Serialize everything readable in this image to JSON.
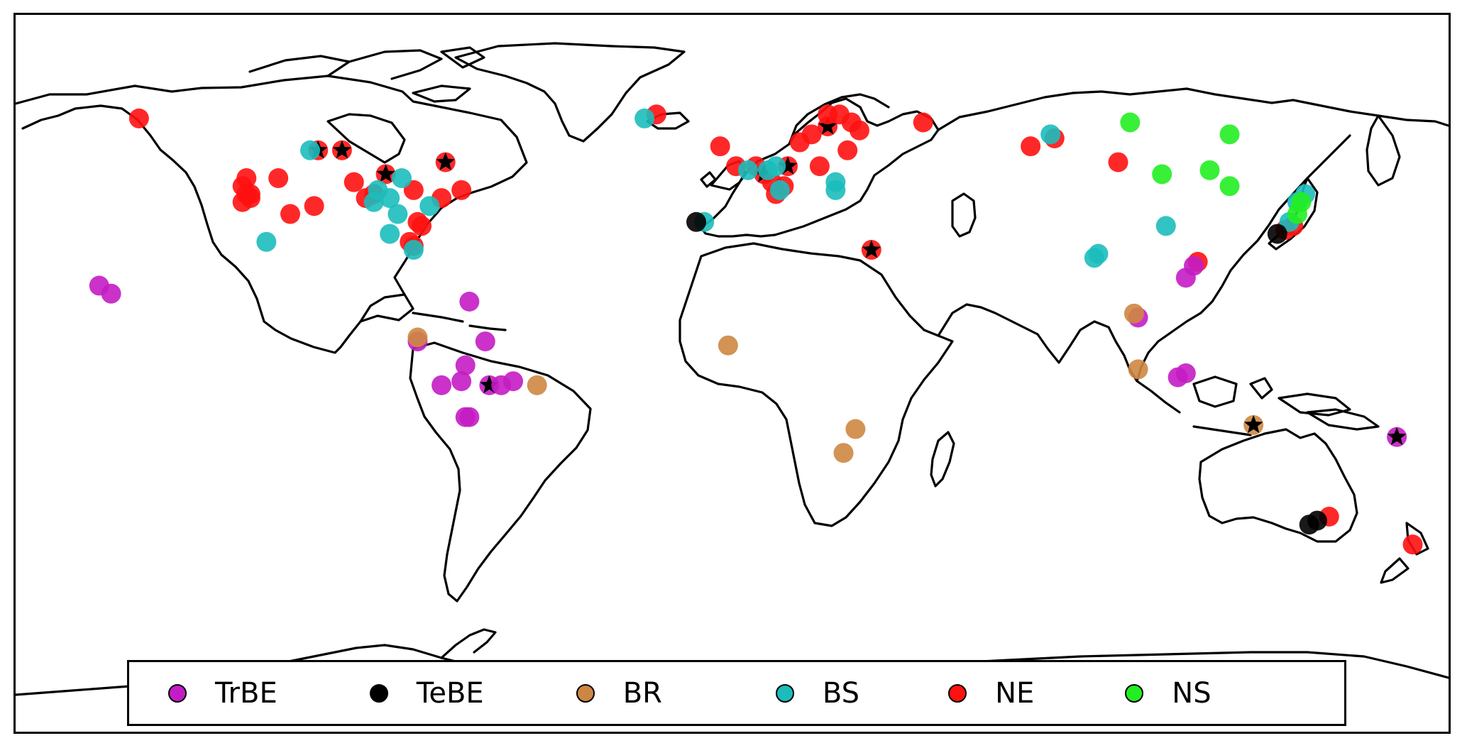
{
  "legend": {
    "items": [
      {
        "key": "TrBE",
        "label": "TrBE",
        "color": "#c41cc4"
      },
      {
        "key": "TeBE",
        "label": "TeBE",
        "color": "#000000"
      },
      {
        "key": "BR",
        "label": "BR",
        "color": "#cd8743"
      },
      {
        "key": "BS",
        "label": "BS",
        "color": "#1cbcbc"
      },
      {
        "key": "NE",
        "label": "NE",
        "color": "#ff1111"
      },
      {
        "key": "NS",
        "label": "NS",
        "color": "#22ee22"
      }
    ]
  },
  "map": {
    "projection": "plate-carree",
    "lon_range": [
      -180,
      180
    ],
    "lat_range": [
      -90,
      90
    ],
    "point_opacity": 0.9,
    "markers": {
      "site": "circle",
      "highlighted_site": "star"
    },
    "sites": [
      {
        "type": "NE",
        "lon": -149,
        "lat": 64,
        "star": false
      },
      {
        "type": "NE",
        "lon": -122,
        "lat": 49,
        "star": false
      },
      {
        "type": "NE",
        "lon": -123,
        "lat": 47,
        "star": false
      },
      {
        "type": "NE",
        "lon": -122,
        "lat": 45,
        "star": false
      },
      {
        "type": "NE",
        "lon": -121,
        "lat": 44,
        "star": false
      },
      {
        "type": "NE",
        "lon": -123,
        "lat": 43,
        "star": false
      },
      {
        "type": "NE",
        "lon": -121,
        "lat": 45,
        "star": false
      },
      {
        "type": "NE",
        "lon": -114,
        "lat": 49,
        "star": false
      },
      {
        "type": "NE",
        "lon": -111,
        "lat": 40,
        "star": false
      },
      {
        "type": "NE",
        "lon": -105,
        "lat": 42,
        "star": false
      },
      {
        "type": "NE",
        "lon": -95,
        "lat": 48,
        "star": false
      },
      {
        "type": "NE",
        "lon": -104,
        "lat": 56,
        "star": true
      },
      {
        "type": "NE",
        "lon": -98,
        "lat": 56,
        "star": true
      },
      {
        "type": "NE",
        "lon": -92,
        "lat": 44,
        "star": false
      },
      {
        "type": "NE",
        "lon": -87,
        "lat": 50,
        "star": true
      },
      {
        "type": "NE",
        "lon": -90,
        "lat": 45,
        "star": false
      },
      {
        "type": "NE",
        "lon": -80,
        "lat": 46,
        "star": false
      },
      {
        "type": "NE",
        "lon": -72,
        "lat": 53,
        "star": true
      },
      {
        "type": "NE",
        "lon": -68,
        "lat": 46,
        "star": false
      },
      {
        "type": "NE",
        "lon": -78,
        "lat": 37,
        "star": false
      },
      {
        "type": "NE",
        "lon": -79,
        "lat": 38,
        "star": false
      },
      {
        "type": "NE",
        "lon": -81,
        "lat": 33,
        "star": false
      },
      {
        "type": "NE",
        "lon": -80,
        "lat": 32,
        "star": false
      },
      {
        "type": "NE",
        "lon": -73,
        "lat": 44,
        "star": false
      },
      {
        "type": "NE",
        "lon": -19,
        "lat": 65,
        "star": false
      },
      {
        "type": "NE",
        "lon": -3,
        "lat": 57,
        "star": false
      },
      {
        "type": "NE",
        "lon": 1,
        "lat": 52,
        "star": false
      },
      {
        "type": "NE",
        "lon": 6,
        "lat": 52,
        "star": false
      },
      {
        "type": "NE",
        "lon": 8,
        "lat": 50,
        "star": true
      },
      {
        "type": "NE",
        "lon": 10,
        "lat": 48,
        "star": false
      },
      {
        "type": "NE",
        "lon": 13,
        "lat": 47,
        "star": false
      },
      {
        "type": "NE",
        "lon": 11,
        "lat": 45,
        "star": false
      },
      {
        "type": "NE",
        "lon": 14,
        "lat": 52,
        "star": true
      },
      {
        "type": "NE",
        "lon": 17,
        "lat": 58,
        "star": false
      },
      {
        "type": "NE",
        "lon": 20,
        "lat": 60,
        "star": false
      },
      {
        "type": "NE",
        "lon": 24,
        "lat": 62,
        "star": true
      },
      {
        "type": "NE",
        "lon": 24,
        "lat": 65,
        "star": false
      },
      {
        "type": "NE",
        "lon": 27,
        "lat": 65,
        "star": false
      },
      {
        "type": "NE",
        "lon": 30,
        "lat": 63,
        "star": false
      },
      {
        "type": "NE",
        "lon": 29,
        "lat": 56,
        "star": false
      },
      {
        "type": "NE",
        "lon": 22,
        "lat": 52,
        "star": false
      },
      {
        "type": "NE",
        "lon": 32,
        "lat": 61,
        "star": false
      },
      {
        "type": "NE",
        "lon": 48,
        "lat": 63,
        "star": false
      },
      {
        "type": "NE",
        "lon": 35,
        "lat": 31,
        "star": true
      },
      {
        "type": "NE",
        "lon": 75,
        "lat": 57,
        "star": false
      },
      {
        "type": "NE",
        "lon": 81,
        "lat": 59,
        "star": false
      },
      {
        "type": "NE",
        "lon": 97,
        "lat": 53,
        "star": false
      },
      {
        "type": "NE",
        "lon": 117,
        "lat": 28,
        "star": false
      },
      {
        "type": "NE",
        "lon": 139,
        "lat": 36,
        "star": false
      },
      {
        "type": "NE",
        "lon": 141,
        "lat": 37,
        "star": false
      },
      {
        "type": "NE",
        "lon": 150,
        "lat": -36,
        "star": false
      },
      {
        "type": "NE",
        "lon": 171,
        "lat": -43,
        "star": false
      },
      {
        "type": "BS",
        "lon": -86,
        "lat": 44,
        "star": false
      },
      {
        "type": "BS",
        "lon": -89,
        "lat": 46,
        "star": false
      },
      {
        "type": "BS",
        "lon": -90,
        "lat": 43,
        "star": false
      },
      {
        "type": "BS",
        "lon": -84,
        "lat": 40,
        "star": false
      },
      {
        "type": "BS",
        "lon": -86,
        "lat": 35,
        "star": false
      },
      {
        "type": "BS",
        "lon": -83,
        "lat": 49,
        "star": false
      },
      {
        "type": "BS",
        "lon": -76,
        "lat": 42,
        "star": false
      },
      {
        "type": "BS",
        "lon": -80,
        "lat": 31,
        "star": false
      },
      {
        "type": "BS",
        "lon": -117,
        "lat": 33,
        "star": false
      },
      {
        "type": "BS",
        "lon": -106,
        "lat": 56,
        "star": false
      },
      {
        "type": "BS",
        "lon": -22,
        "lat": 64,
        "star": false
      },
      {
        "type": "BS",
        "lon": 4,
        "lat": 51,
        "star": false
      },
      {
        "type": "BS",
        "lon": 9,
        "lat": 51,
        "star": false
      },
      {
        "type": "BS",
        "lon": 11,
        "lat": 52,
        "star": false
      },
      {
        "type": "BS",
        "lon": 12,
        "lat": 46,
        "star": false
      },
      {
        "type": "BS",
        "lon": 26,
        "lat": 48,
        "star": false
      },
      {
        "type": "BS",
        "lon": 26,
        "lat": 46,
        "star": false
      },
      {
        "type": "BS",
        "lon": -7,
        "lat": 38,
        "star": false
      },
      {
        "type": "BS",
        "lon": 80,
        "lat": 60,
        "star": false
      },
      {
        "type": "BS",
        "lon": 109,
        "lat": 37,
        "star": false
      },
      {
        "type": "BS",
        "lon": 91,
        "lat": 29,
        "star": false
      },
      {
        "type": "BS",
        "lon": 92,
        "lat": 30,
        "star": false
      },
      {
        "type": "BS",
        "lon": 142,
        "lat": 43,
        "star": false
      },
      {
        "type": "BS",
        "lon": 144,
        "lat": 45,
        "star": false
      },
      {
        "type": "BS",
        "lon": 140,
        "lat": 38,
        "star": false
      },
      {
        "type": "NS",
        "lon": 100,
        "lat": 63,
        "star": false
      },
      {
        "type": "NS",
        "lon": 108,
        "lat": 50,
        "star": false
      },
      {
        "type": "NS",
        "lon": 120,
        "lat": 51,
        "star": false
      },
      {
        "type": "NS",
        "lon": 125,
        "lat": 60,
        "star": false
      },
      {
        "type": "NS",
        "lon": 125,
        "lat": 47,
        "star": false
      },
      {
        "type": "NS",
        "lon": 142,
        "lat": 40,
        "star": false
      },
      {
        "type": "NS",
        "lon": 143,
        "lat": 43,
        "star": false
      },
      {
        "type": "TrBE",
        "lon": -159,
        "lat": 22,
        "star": false
      },
      {
        "type": "TrBE",
        "lon": -156,
        "lat": 20,
        "star": false
      },
      {
        "type": "TrBE",
        "lon": -66,
        "lat": 18,
        "star": false
      },
      {
        "type": "TrBE",
        "lon": -79,
        "lat": 8,
        "star": false
      },
      {
        "type": "TrBE",
        "lon": -62,
        "lat": 8,
        "star": false
      },
      {
        "type": "TrBE",
        "lon": -67,
        "lat": 2,
        "star": false
      },
      {
        "type": "TrBE",
        "lon": -73,
        "lat": -3,
        "star": false
      },
      {
        "type": "TrBE",
        "lon": -68,
        "lat": -2,
        "star": false
      },
      {
        "type": "TrBE",
        "lon": -61,
        "lat": -3,
        "star": true
      },
      {
        "type": "TrBE",
        "lon": -58,
        "lat": -3,
        "star": false
      },
      {
        "type": "TrBE",
        "lon": -55,
        "lat": -2,
        "star": false
      },
      {
        "type": "TrBE",
        "lon": -67,
        "lat": -11,
        "star": false
      },
      {
        "type": "TrBE",
        "lon": -66,
        "lat": -11,
        "star": false
      },
      {
        "type": "TrBE",
        "lon": 102,
        "lat": 14,
        "star": false
      },
      {
        "type": "TrBE",
        "lon": 114,
        "lat": 24,
        "star": false
      },
      {
        "type": "TrBE",
        "lon": 116,
        "lat": 27,
        "star": false
      },
      {
        "type": "TrBE",
        "lon": 112,
        "lat": -1,
        "star": false
      },
      {
        "type": "TrBE",
        "lon": 114,
        "lat": 0,
        "star": false
      },
      {
        "type": "TrBE",
        "lon": 167,
        "lat": -16,
        "star": true
      },
      {
        "type": "TeBE",
        "lon": -9,
        "lat": 38,
        "star": false
      },
      {
        "type": "TeBE",
        "lon": 137,
        "lat": 35,
        "star": false
      },
      {
        "type": "TeBE",
        "lon": 145,
        "lat": -38,
        "star": false
      },
      {
        "type": "TeBE",
        "lon": 147,
        "lat": -37,
        "star": false
      },
      {
        "type": "BR",
        "lon": -79,
        "lat": 9,
        "star": false
      },
      {
        "type": "BR",
        "lon": -49,
        "lat": -3,
        "star": false
      },
      {
        "type": "BR",
        "lon": -1,
        "lat": 7,
        "star": false
      },
      {
        "type": "BR",
        "lon": 31,
        "lat": -14,
        "star": false
      },
      {
        "type": "BR",
        "lon": 28,
        "lat": -20,
        "star": false
      },
      {
        "type": "BR",
        "lon": 101,
        "lat": 15,
        "star": false
      },
      {
        "type": "BR",
        "lon": 102,
        "lat": 1,
        "star": false
      },
      {
        "type": "BR",
        "lon": 131,
        "lat": -13,
        "star": true
      }
    ]
  }
}
